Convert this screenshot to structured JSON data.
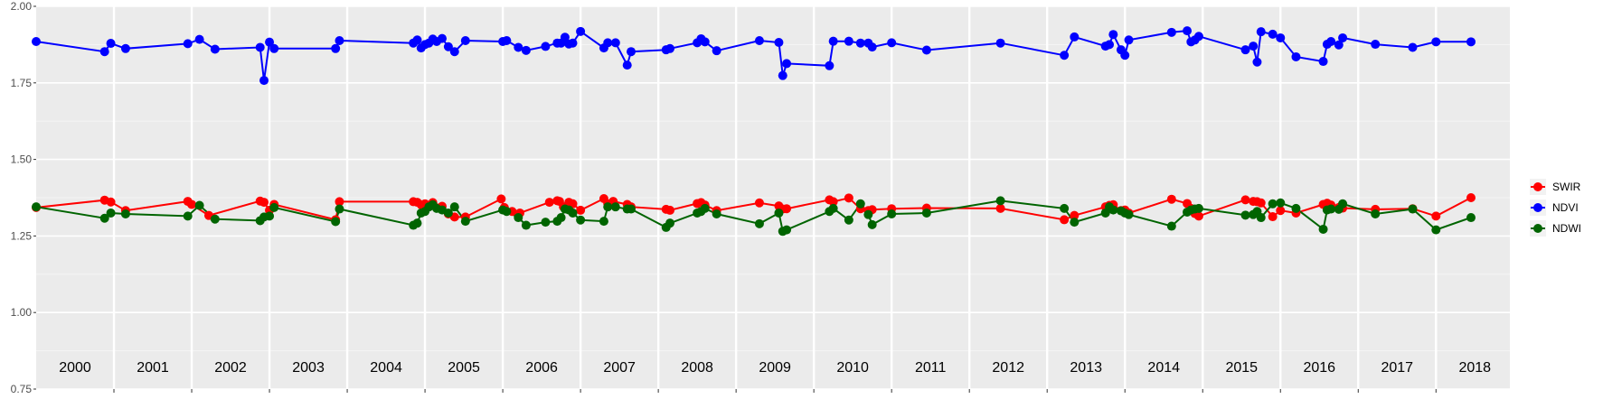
{
  "chart_data": {
    "type": "line",
    "title": "",
    "xlabel": "",
    "ylabel": "",
    "x_range": [
      2000.0,
      2018.95
    ],
    "ylim": [
      0.75,
      2.0
    ],
    "y_ticks": [
      "0.75",
      "1.00",
      "1.25",
      "1.50",
      "1.75",
      "2.00"
    ],
    "year_labels": [
      "2000",
      "2001",
      "2002",
      "2003",
      "2004",
      "2005",
      "2006",
      "2007",
      "2008",
      "2009",
      "2010",
      "2011",
      "2012",
      "2013",
      "2014",
      "2015",
      "2016",
      "2017",
      "2018"
    ],
    "grid": true,
    "legend_position": "right",
    "series": [
      {
        "name": "SWIR",
        "color": "#ff0000",
        "x": [
          2000.0,
          2000.88,
          2000.96,
          2001.15,
          2001.95,
          2002.0,
          2002.22,
          2002.88,
          2002.93,
          2003.0,
          2003.06,
          2003.85,
          2003.9,
          2004.85,
          2004.9,
          2004.95,
          2005.0,
          2005.05,
          2005.1,
          2005.22,
          2005.3,
          2005.38,
          2005.52,
          2005.98,
          2006.02,
          2006.12,
          2006.22,
          2006.6,
          2006.7,
          2006.73,
          2006.78,
          2006.85,
          2006.9,
          2007.0,
          2007.3,
          2007.35,
          2007.42,
          2007.6,
          2007.65,
          2008.1,
          2008.15,
          2008.5,
          2008.55,
          2008.6,
          2008.75,
          2009.3,
          2009.55,
          2009.6,
          2009.65,
          2010.2,
          2010.25,
          2010.45,
          2010.6,
          2010.7,
          2010.75,
          2011.0,
          2011.45,
          2012.4,
          2013.22,
          2013.35,
          2013.75,
          2013.8,
          2013.85,
          2013.95,
          2014.0,
          2014.05,
          2014.6,
          2014.8,
          2014.85,
          2014.9,
          2014.95,
          2015.55,
          2015.65,
          2015.7,
          2015.75,
          2015.9,
          2016.0,
          2016.2,
          2016.55,
          2016.6,
          2016.65,
          2016.75,
          2016.8,
          2017.22,
          2017.7,
          2018.0,
          2018.45
        ],
        "values": [
          1.343,
          1.367,
          1.361,
          1.333,
          1.363,
          1.353,
          1.317,
          1.364,
          1.36,
          1.334,
          1.353,
          1.303,
          1.362,
          1.362,
          1.36,
          1.352,
          1.355,
          1.35,
          1.359,
          1.347,
          1.322,
          1.312,
          1.312,
          1.371,
          1.343,
          1.33,
          1.325,
          1.36,
          1.365,
          1.363,
          1.345,
          1.36,
          1.355,
          1.334,
          1.372,
          1.355,
          1.363,
          1.353,
          1.345,
          1.337,
          1.334,
          1.356,
          1.359,
          1.351,
          1.333,
          1.358,
          1.348,
          1.338,
          1.339,
          1.368,
          1.362,
          1.374,
          1.339,
          1.333,
          1.336,
          1.339,
          1.341,
          1.34,
          1.303,
          1.317,
          1.345,
          1.35,
          1.352,
          1.333,
          1.335,
          1.325,
          1.37,
          1.356,
          1.34,
          1.323,
          1.315,
          1.368,
          1.363,
          1.362,
          1.358,
          1.313,
          1.333,
          1.325,
          1.353,
          1.357,
          1.351,
          1.343,
          1.341,
          1.337,
          1.339,
          1.315,
          1.375
        ]
      },
      {
        "name": "NDVI",
        "color": "#0000ff",
        "x": [
          2000.0,
          2000.88,
          2000.96,
          2001.15,
          2001.95,
          2002.1,
          2002.3,
          2002.88,
          2002.93,
          2003.0,
          2003.06,
          2003.85,
          2003.9,
          2004.85,
          2004.9,
          2004.95,
          2005.0,
          2005.05,
          2005.1,
          2005.15,
          2005.22,
          2005.3,
          2005.38,
          2005.52,
          2006.0,
          2006.05,
          2006.2,
          2006.3,
          2006.55,
          2006.7,
          2006.75,
          2006.8,
          2006.85,
          2006.9,
          2007.0,
          2007.3,
          2007.35,
          2007.45,
          2007.6,
          2007.65,
          2008.1,
          2008.15,
          2008.5,
          2008.55,
          2008.6,
          2008.75,
          2009.3,
          2009.55,
          2009.6,
          2009.65,
          2010.2,
          2010.25,
          2010.45,
          2010.6,
          2010.7,
          2010.75,
          2011.0,
          2011.45,
          2012.4,
          2013.22,
          2013.35,
          2013.75,
          2013.8,
          2013.85,
          2013.95,
          2014.0,
          2014.05,
          2014.6,
          2014.8,
          2014.85,
          2014.9,
          2014.95,
          2015.55,
          2015.65,
          2015.7,
          2015.75,
          2015.9,
          2016.0,
          2016.2,
          2016.55,
          2016.6,
          2016.65,
          2016.75,
          2016.8,
          2017.22,
          2017.7,
          2018.0,
          2018.45
        ],
        "values": [
          1.885,
          1.852,
          1.879,
          1.862,
          1.878,
          1.892,
          1.86,
          1.866,
          1.758,
          1.883,
          1.862,
          1.862,
          1.888,
          1.88,
          1.89,
          1.864,
          1.875,
          1.88,
          1.893,
          1.885,
          1.895,
          1.868,
          1.852,
          1.888,
          1.885,
          1.888,
          1.866,
          1.856,
          1.869,
          1.88,
          1.88,
          1.899,
          1.877,
          1.88,
          1.918,
          1.864,
          1.881,
          1.881,
          1.808,
          1.852,
          1.858,
          1.862,
          1.881,
          1.894,
          1.884,
          1.855,
          1.888,
          1.882,
          1.774,
          1.813,
          1.806,
          1.886,
          1.886,
          1.88,
          1.88,
          1.867,
          1.881,
          1.857,
          1.88,
          1.84,
          1.9,
          1.87,
          1.875,
          1.908,
          1.858,
          1.84,
          1.89,
          1.915,
          1.92,
          1.884,
          1.89,
          1.902,
          1.858,
          1.87,
          1.818,
          1.917,
          1.909,
          1.897,
          1.835,
          1.82,
          1.876,
          1.885,
          1.874,
          1.897,
          1.876,
          1.866,
          1.884,
          1.884
        ]
      },
      {
        "name": "NDWI",
        "color": "#006400",
        "x": [
          2000.0,
          2000.88,
          2000.96,
          2001.15,
          2001.95,
          2002.1,
          2002.3,
          2002.88,
          2002.93,
          2003.0,
          2003.06,
          2003.85,
          2003.9,
          2004.85,
          2004.9,
          2004.95,
          2005.0,
          2005.05,
          2005.1,
          2005.15,
          2005.22,
          2005.3,
          2005.38,
          2005.52,
          2006.0,
          2006.05,
          2006.2,
          2006.3,
          2006.55,
          2006.7,
          2006.75,
          2006.8,
          2006.85,
          2006.9,
          2007.0,
          2007.3,
          2007.35,
          2007.45,
          2007.6,
          2007.65,
          2008.1,
          2008.15,
          2008.5,
          2008.55,
          2008.6,
          2008.75,
          2009.3,
          2009.55,
          2009.6,
          2009.65,
          2010.2,
          2010.25,
          2010.45,
          2010.6,
          2010.7,
          2010.75,
          2011.0,
          2011.45,
          2012.4,
          2013.22,
          2013.35,
          2013.75,
          2013.8,
          2013.85,
          2013.95,
          2014.0,
          2014.05,
          2014.6,
          2014.8,
          2014.85,
          2014.9,
          2014.95,
          2015.55,
          2015.65,
          2015.7,
          2015.75,
          2015.9,
          2016.0,
          2016.2,
          2016.55,
          2016.6,
          2016.65,
          2016.75,
          2016.8,
          2017.22,
          2017.7,
          2018.0,
          2018.45
        ],
        "values": [
          1.345,
          1.308,
          1.325,
          1.322,
          1.315,
          1.35,
          1.305,
          1.3,
          1.312,
          1.315,
          1.343,
          1.297,
          1.338,
          1.285,
          1.292,
          1.325,
          1.33,
          1.345,
          1.352,
          1.34,
          1.335,
          1.325,
          1.345,
          1.298,
          1.335,
          1.33,
          1.31,
          1.285,
          1.295,
          1.298,
          1.31,
          1.338,
          1.335,
          1.325,
          1.302,
          1.298,
          1.345,
          1.345,
          1.338,
          1.338,
          1.278,
          1.292,
          1.325,
          1.33,
          1.34,
          1.322,
          1.29,
          1.325,
          1.265,
          1.27,
          1.33,
          1.34,
          1.302,
          1.355,
          1.32,
          1.287,
          1.322,
          1.325,
          1.365,
          1.34,
          1.295,
          1.325,
          1.345,
          1.335,
          1.332,
          1.325,
          1.32,
          1.282,
          1.328,
          1.335,
          1.338,
          1.34,
          1.318,
          1.32,
          1.33,
          1.31,
          1.355,
          1.358,
          1.34,
          1.272,
          1.335,
          1.338,
          1.337,
          1.355,
          1.322,
          1.338,
          1.27,
          1.31
        ]
      }
    ]
  }
}
